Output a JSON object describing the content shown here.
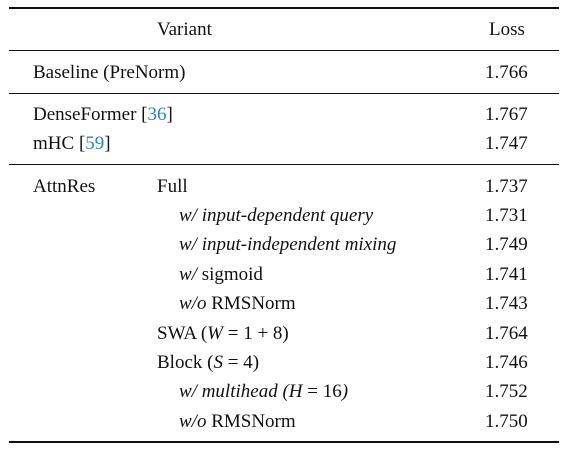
{
  "header": {
    "variant": "Variant",
    "loss": "Loss"
  },
  "baseline": {
    "label": "Baseline (PreNorm)",
    "loss": "1.766"
  },
  "denseformer": {
    "label": "DenseFormer",
    "cite": "36",
    "loss": "1.767"
  },
  "mhc": {
    "label": "mHC",
    "cite": "59",
    "loss": "1.747"
  },
  "attnres": {
    "group": "AttnRes",
    "full": {
      "label": "Full",
      "loss": "1.737"
    },
    "input_dependent_query": {
      "prefix": "w/",
      "label": "input-dependent query",
      "loss": "1.731"
    },
    "input_independent_mixing": {
      "prefix": "w/",
      "label": "input-independent mixing",
      "loss": "1.749"
    },
    "sigmoid": {
      "prefix": "w/",
      "label": "sigmoid",
      "loss": "1.741"
    },
    "wo_rmsnorm_full": {
      "prefix": "w/o",
      "label": "RMSNorm",
      "loss": "1.743"
    },
    "swa": {
      "label": "SWA",
      "var": "W",
      "expr": "= 1 + 8",
      "loss": "1.764"
    },
    "block": {
      "label": "Block",
      "var": "S",
      "expr": "= 4",
      "loss": "1.746"
    },
    "multihead": {
      "prefix": "w/",
      "label": "multihead",
      "var": "H",
      "expr": "= 16",
      "loss": "1.752"
    },
    "wo_rmsnorm_block": {
      "prefix": "w/o",
      "label": "RMSNorm",
      "loss": "1.750"
    }
  },
  "colors": {
    "citation": "#2a7fd4",
    "text": "#111111"
  }
}
